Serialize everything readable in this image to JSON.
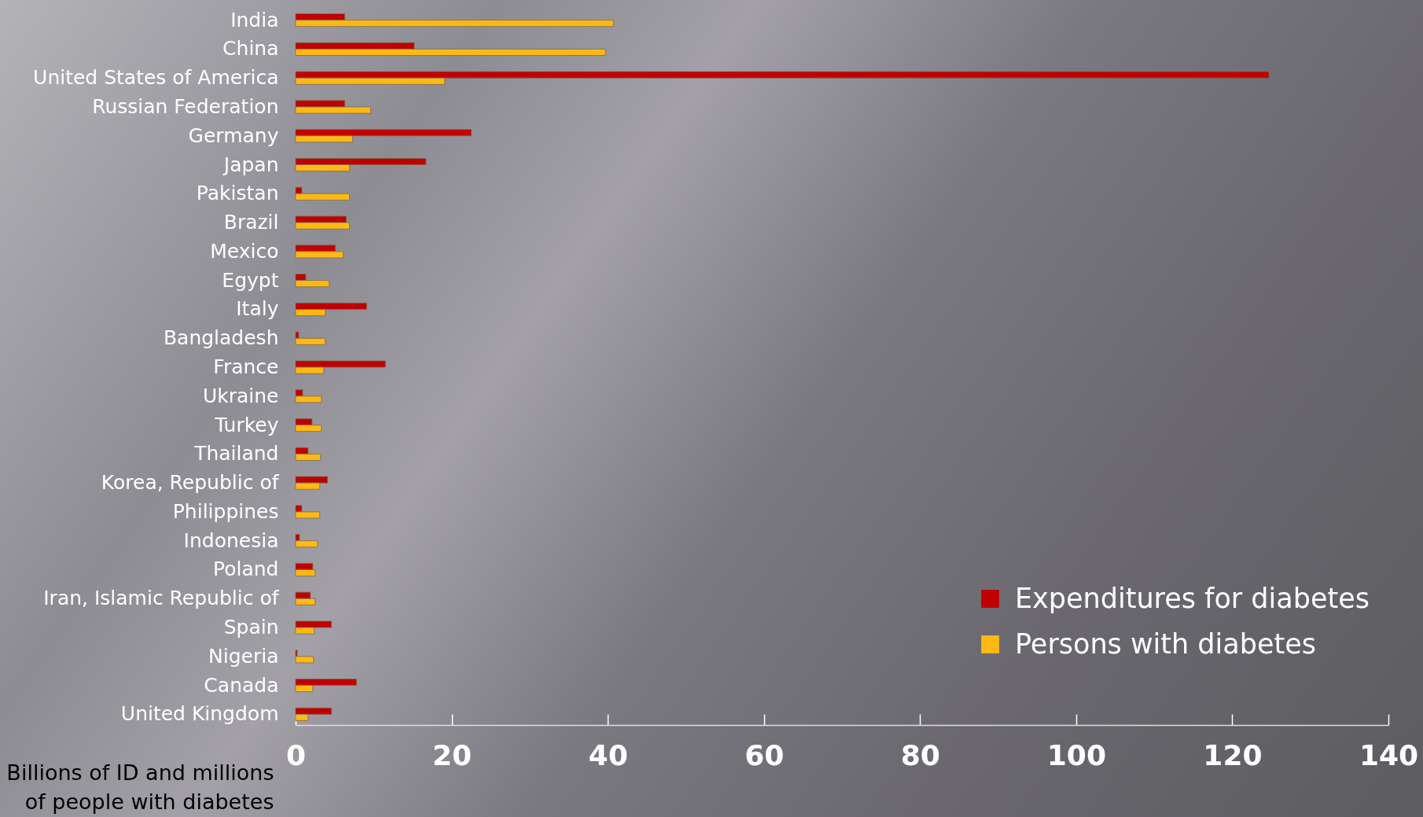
{
  "chart_data": {
    "type": "bar",
    "orientation": "horizontal",
    "xlabel": "Billions of ID and millions of people with diabetes",
    "categories": [
      "India",
      "China",
      "United States of America",
      "Russian Federation",
      "Germany",
      "Japan",
      "Pakistan",
      "Brazil",
      "Mexico",
      "Egypt",
      "Italy",
      "Bangladesh",
      "France",
      "Ukraine",
      "Turkey",
      "Thailand",
      "Korea, Republic of",
      "Philippines",
      "Indonesia",
      "Poland",
      "Iran, Islamic Republic of",
      "Spain",
      "Nigeria",
      "Canada",
      "United Kingdom"
    ],
    "series": [
      {
        "name": "Expenditures for diabetes",
        "color": "#c00000",
        "values": [
          6.3,
          15.2,
          124.7,
          6.3,
          22.5,
          16.7,
          0.8,
          6.5,
          5.1,
          1.3,
          9.1,
          0.4,
          11.5,
          0.9,
          2.1,
          1.6,
          4.1,
          0.8,
          0.5,
          2.2,
          1.9,
          4.6,
          0.2,
          7.8,
          4.6
        ]
      },
      {
        "name": "Persons with diabetes",
        "color": "#ffb914",
        "values": [
          40.7,
          39.7,
          19.1,
          9.6,
          7.3,
          6.9,
          6.9,
          6.9,
          6.1,
          4.3,
          3.8,
          3.8,
          3.6,
          3.3,
          3.3,
          3.2,
          3.1,
          3.1,
          2.8,
          2.5,
          2.5,
          2.4,
          2.3,
          2.2,
          1.6
        ]
      }
    ],
    "xlim": [
      0,
      140
    ],
    "xticks": [
      0,
      20,
      40,
      60,
      80,
      100,
      120,
      140
    ],
    "legend": "bottom right"
  }
}
